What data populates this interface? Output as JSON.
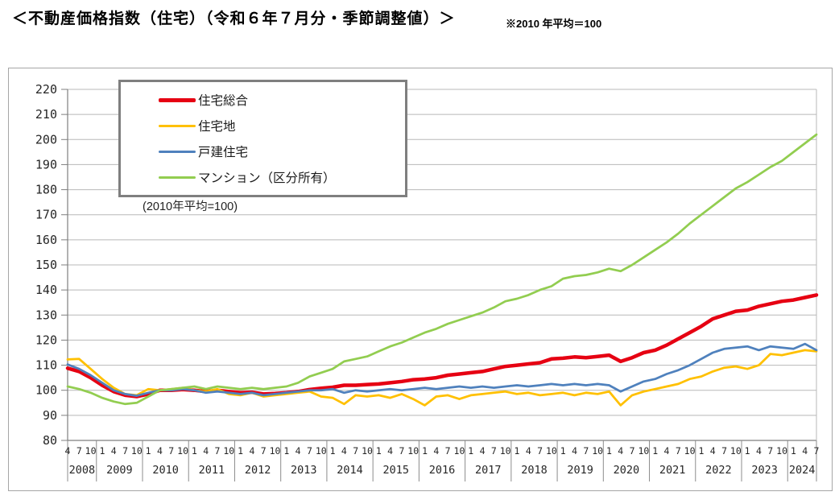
{
  "title": "＜不動産価格指数（住宅）（令和６年７月分・季節調整値）＞",
  "note": "※2010 年平均＝100",
  "legend": {
    "note": "(2010年平均=100)"
  },
  "chart_data": {
    "type": "line",
    "title": "不動産価格指数（住宅）（令和６年７月分・季節調整値）",
    "baseline_note": "2010年平均=100",
    "ylim": [
      80,
      220
    ],
    "y_ticks": [
      80,
      90,
      100,
      110,
      120,
      130,
      140,
      150,
      160,
      170,
      180,
      190,
      200,
      210,
      220
    ],
    "grid": true,
    "legend_position": "top-left",
    "x_axis": {
      "years": [
        {
          "label": "2008",
          "months": [
            "4",
            "7",
            "10"
          ]
        },
        {
          "label": "2009",
          "months": [
            "1",
            "4",
            "7",
            "10"
          ]
        },
        {
          "label": "2010",
          "months": [
            "1",
            "4",
            "7",
            "10"
          ]
        },
        {
          "label": "2011",
          "months": [
            "1",
            "4",
            "7",
            "10"
          ]
        },
        {
          "label": "2012",
          "months": [
            "1",
            "4",
            "7",
            "10"
          ]
        },
        {
          "label": "2013",
          "months": [
            "1",
            "4",
            "7",
            "10"
          ]
        },
        {
          "label": "2014",
          "months": [
            "1",
            "4",
            "7",
            "10"
          ]
        },
        {
          "label": "2015",
          "months": [
            "1",
            "4",
            "7",
            "10"
          ]
        },
        {
          "label": "2016",
          "months": [
            "1",
            "4",
            "7",
            "10"
          ]
        },
        {
          "label": "2017",
          "months": [
            "1",
            "4",
            "7",
            "10"
          ]
        },
        {
          "label": "2018",
          "months": [
            "1",
            "4",
            "7",
            "10"
          ]
        },
        {
          "label": "2019",
          "months": [
            "1",
            "4",
            "7",
            "10"
          ]
        },
        {
          "label": "2020",
          "months": [
            "1",
            "4",
            "7",
            "10"
          ]
        },
        {
          "label": "2021",
          "months": [
            "1",
            "4",
            "7",
            "10"
          ]
        },
        {
          "label": "2022",
          "months": [
            "1",
            "4",
            "7",
            "10"
          ]
        },
        {
          "label": "2023",
          "months": [
            "1",
            "4",
            "7",
            "10"
          ]
        },
        {
          "label": "2024",
          "months": [
            "1",
            "4",
            "7"
          ]
        }
      ]
    },
    "x_quarters": [
      "2008/4",
      "2008/7",
      "2008/10",
      "2009/1",
      "2009/4",
      "2009/7",
      "2009/10",
      "2010/1",
      "2010/4",
      "2010/7",
      "2010/10",
      "2011/1",
      "2011/4",
      "2011/7",
      "2011/10",
      "2012/1",
      "2012/4",
      "2012/7",
      "2012/10",
      "2013/1",
      "2013/4",
      "2013/7",
      "2013/10",
      "2014/1",
      "2014/4",
      "2014/7",
      "2014/10",
      "2015/1",
      "2015/4",
      "2015/7",
      "2015/10",
      "2016/1",
      "2016/4",
      "2016/7",
      "2016/10",
      "2017/1",
      "2017/4",
      "2017/7",
      "2017/10",
      "2018/1",
      "2018/4",
      "2018/7",
      "2018/10",
      "2019/1",
      "2019/4",
      "2019/7",
      "2019/10",
      "2020/1",
      "2020/4",
      "2020/7",
      "2020/10",
      "2021/1",
      "2021/4",
      "2021/7",
      "2021/10",
      "2022/1",
      "2022/4",
      "2022/7",
      "2022/10",
      "2023/1",
      "2023/4",
      "2023/7",
      "2023/10",
      "2024/1",
      "2024/4",
      "2024/7"
    ],
    "series": [
      {
        "key": "residential-total",
        "name": "住宅総合",
        "color": "#e60012",
        "values": [
          108.8,
          107.5,
          105.0,
          102.0,
          99.5,
          98.0,
          97.5,
          98.5,
          100.0,
          100.0,
          100.3,
          100.0,
          99.5,
          100.0,
          99.5,
          99.0,
          99.2,
          98.5,
          98.7,
          99.0,
          99.5,
          100.3,
          100.8,
          101.2,
          102.0,
          102.0,
          102.3,
          102.5,
          103.0,
          103.5,
          104.2,
          104.5,
          105.0,
          106.0,
          106.5,
          107.0,
          107.5,
          108.5,
          109.5,
          110.0,
          110.5,
          111.0,
          112.5,
          112.8,
          113.3,
          113.0,
          113.5,
          114.0,
          111.5,
          113.0,
          115.0,
          116.0,
          118.0,
          120.5,
          123.0,
          125.5,
          128.5,
          130.0,
          131.5,
          132.0,
          133.5,
          134.5,
          135.5,
          136.0,
          137.0,
          138.0
        ]
      },
      {
        "key": "residential-land",
        "name": "住宅地",
        "color": "#ffc000",
        "values": [
          112.3,
          112.5,
          108.5,
          104.5,
          101.0,
          98.5,
          98.0,
          100.5,
          100.0,
          100.5,
          101.0,
          100.0,
          99.5,
          100.5,
          98.5,
          98.0,
          99.0,
          97.5,
          98.0,
          98.5,
          99.0,
          99.5,
          97.5,
          97.0,
          94.5,
          98.0,
          97.5,
          98.0,
          97.0,
          98.5,
          96.5,
          94.0,
          97.5,
          98.0,
          96.5,
          98.0,
          98.5,
          99.0,
          99.5,
          98.5,
          99.0,
          98.0,
          98.5,
          99.0,
          98.0,
          99.0,
          98.5,
          99.5,
          94.0,
          98.0,
          99.5,
          100.5,
          101.5,
          102.5,
          104.5,
          105.5,
          107.5,
          109.0,
          109.5,
          108.5,
          110.0,
          114.5,
          114.0,
          115.0,
          116.0,
          115.5
        ]
      },
      {
        "key": "detached-house",
        "name": "戸建住宅",
        "color": "#4f81bd",
        "values": [
          110.3,
          108.5,
          106.0,
          103.0,
          100.0,
          98.5,
          97.8,
          99.0,
          100.0,
          100.0,
          100.5,
          100.0,
          99.0,
          99.5,
          99.0,
          98.5,
          99.0,
          98.0,
          98.5,
          99.0,
          99.5,
          100.0,
          100.0,
          100.5,
          99.0,
          100.0,
          99.5,
          100.0,
          100.5,
          100.0,
          100.5,
          101.0,
          100.5,
          101.0,
          101.5,
          101.0,
          101.5,
          101.0,
          101.5,
          102.0,
          101.5,
          102.0,
          102.5,
          102.0,
          102.5,
          102.0,
          102.5,
          102.0,
          99.5,
          101.5,
          103.5,
          104.5,
          106.5,
          108.0,
          110.0,
          112.5,
          115.0,
          116.5,
          117.0,
          117.5,
          116.0,
          117.5,
          117.0,
          116.5,
          118.5,
          116.0
        ]
      },
      {
        "key": "condominium",
        "name": "マンション（区分所有）",
        "color": "#92cd50",
        "values": [
          101.5,
          100.5,
          99.0,
          97.0,
          95.5,
          94.5,
          95.0,
          97.5,
          100.0,
          100.5,
          101.0,
          101.5,
          100.5,
          101.5,
          101.0,
          100.5,
          101.0,
          100.5,
          101.0,
          101.5,
          103.0,
          105.5,
          107.0,
          108.5,
          111.5,
          112.5,
          113.5,
          115.5,
          117.5,
          119.0,
          121.0,
          123.0,
          124.5,
          126.5,
          128.0,
          129.5,
          131.0,
          133.0,
          135.5,
          136.5,
          138.0,
          140.0,
          141.5,
          144.5,
          145.5,
          146.0,
          147.0,
          148.5,
          147.5,
          150.0,
          153.0,
          156.0,
          159.0,
          162.5,
          166.5,
          170.0,
          173.5,
          177.0,
          180.5,
          183.0,
          186.0,
          189.0,
          191.5,
          195.0,
          198.5,
          202.0
        ]
      }
    ]
  }
}
